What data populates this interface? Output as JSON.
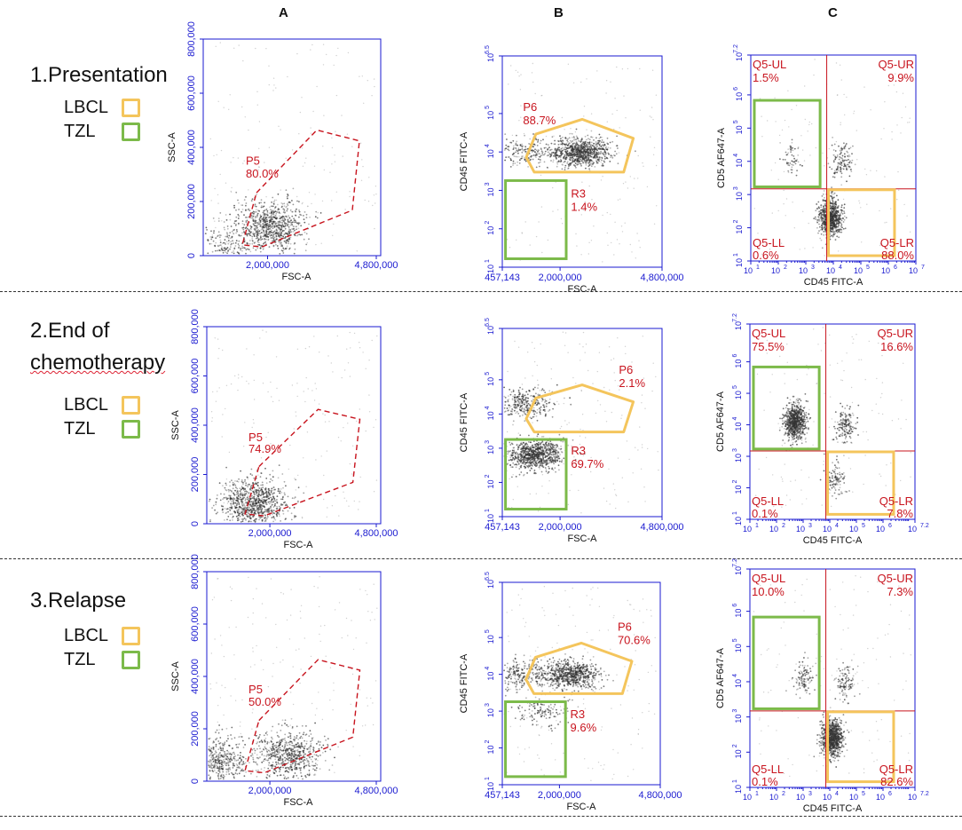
{
  "columns": {
    "a": "A",
    "b": "B",
    "c": "C"
  },
  "legend": {
    "lbcl": "LBCL",
    "tzl": "TZL"
  },
  "colors": {
    "lbcl": "#f4c55c",
    "tzl": "#7cba4a",
    "gate": "#c8141e",
    "axis": "#1a1ad0",
    "dot": "#333333"
  },
  "rows": [
    {
      "title": "1.Presentation"
    },
    {
      "title_line1": "2.End of",
      "title_line2": "chemotherapy"
    },
    {
      "title": "3.Relapse"
    }
  ],
  "chart_data": [
    {
      "id": "r1a",
      "type": "scatter",
      "panel": "A",
      "row": 1,
      "xlabel": "FSC-A",
      "ylabel": "SSC-A",
      "xlim": [
        457143,
        4800000
      ],
      "ylim": [
        0,
        800000
      ],
      "xticks": [
        "2,000,000",
        "4,800,000"
      ],
      "yticks": [
        "0",
        "200,000",
        "400,000",
        "600,000",
        "800,000"
      ],
      "gates": [
        {
          "name": "P5",
          "value": "80.0%"
        }
      ],
      "clusters": [
        {
          "x": 2100000,
          "y": 110000,
          "weight": 0.6
        },
        {
          "x": 1000000,
          "y": 30000,
          "weight": 0.2
        }
      ]
    },
    {
      "id": "r1b",
      "type": "scatter",
      "panel": "B",
      "row": 1,
      "xlabel": "FSC-A",
      "ylabel": "CD45 FITC-A",
      "xlim": [
        457143,
        4800000
      ],
      "ylim_log10": [
        1,
        6.5
      ],
      "xticks": [
        "457,143",
        "2,000,000",
        "4,800,000"
      ],
      "yticks": [
        "1",
        "2",
        "3",
        "4",
        "5",
        "6.5"
      ],
      "gates": [
        {
          "name": "P6",
          "value": "88.7%",
          "kind": "LBCL"
        },
        {
          "name": "R3",
          "value": "1.4%",
          "kind": "TZL"
        }
      ],
      "clusters": [
        {
          "x": 2600000,
          "y": 4.0,
          "weight": 0.7
        },
        {
          "x": 1000000,
          "y": 4.0,
          "weight": 0.15
        }
      ]
    },
    {
      "id": "r1c",
      "type": "scatter",
      "panel": "C",
      "row": 1,
      "xlabel": "CD45 FITC-A",
      "ylabel": "CD5 AF647-A",
      "xlim_log10": [
        1,
        7
      ],
      "ylim_log10": [
        1,
        7.2
      ],
      "xticks": [
        "1",
        "2",
        "3",
        "4",
        "5",
        "6",
        "7"
      ],
      "yticks": [
        "1",
        "2",
        "3",
        "4",
        "5",
        "6",
        "7.2"
      ],
      "quadrants": [
        {
          "name": "Q5-UL",
          "value": "1.5%"
        },
        {
          "name": "Q5-UR",
          "value": "9.9%"
        },
        {
          "name": "Q5-LL",
          "value": "0.6%"
        },
        {
          "name": "Q5-LR",
          "value": "88.0%"
        }
      ],
      "clusters": [
        {
          "x": 3.9,
          "y": 2.3,
          "weight": 0.8
        },
        {
          "x": 4.3,
          "y": 4.0,
          "weight": 0.12
        },
        {
          "x": 2.5,
          "y": 4.1,
          "weight": 0.05
        }
      ]
    },
    {
      "id": "r2a",
      "type": "scatter",
      "panel": "A",
      "row": 2,
      "xlabel": "FSC-A",
      "ylabel": "SSC-A",
      "xlim": [
        457143,
        4800000
      ],
      "ylim": [
        0,
        800000
      ],
      "xticks": [
        "2,000,000",
        "4,800,000"
      ],
      "yticks": [
        "0",
        "200,000",
        "400,000",
        "600,000",
        "800,000"
      ],
      "gates": [
        {
          "name": "P5",
          "value": "74.9%"
        }
      ],
      "clusters": [
        {
          "x": 1600000,
          "y": 80000,
          "weight": 0.7
        }
      ]
    },
    {
      "id": "r2b",
      "type": "scatter",
      "panel": "B",
      "row": 2,
      "xlabel": "FSC-A",
      "ylabel": "CD45 FITC-A",
      "xlim": [
        457143,
        4800000
      ],
      "ylim_log10": [
        1,
        6.5
      ],
      "xticks": [
        "457,143",
        "2,000,000",
        "4,800,000"
      ],
      "yticks": [
        "1",
        "2",
        "3",
        "4",
        "5",
        "6.5"
      ],
      "gates": [
        {
          "name": "P6",
          "value": "2.1%",
          "kind": "LBCL"
        },
        {
          "name": "R3",
          "value": "69.7%",
          "kind": "TZL"
        }
      ],
      "clusters": [
        {
          "x": 1300000,
          "y": 2.8,
          "weight": 0.7
        },
        {
          "x": 1000000,
          "y": 4.3,
          "weight": 0.25
        }
      ]
    },
    {
      "id": "r2c",
      "type": "scatter",
      "panel": "C",
      "row": 2,
      "xlabel": "CD45 FITC-A",
      "ylabel": "CD5 AF647-A",
      "xlim_log10": [
        1,
        7.2
      ],
      "ylim_log10": [
        1,
        7.2
      ],
      "xticks": [
        "1",
        "2",
        "3",
        "4",
        "5",
        "6",
        "7.2"
      ],
      "yticks": [
        "1",
        "2",
        "3",
        "4",
        "5",
        "6",
        "7.2"
      ],
      "quadrants": [
        {
          "name": "Q5-UL",
          "value": "75.5%"
        },
        {
          "name": "Q5-UR",
          "value": "16.6%"
        },
        {
          "name": "Q5-LL",
          "value": "0.1%"
        },
        {
          "name": "Q5-LR",
          "value": "7.8%"
        }
      ],
      "clusters": [
        {
          "x": 2.7,
          "y": 4.1,
          "weight": 0.7
        },
        {
          "x": 4.6,
          "y": 4.0,
          "weight": 0.15
        },
        {
          "x": 4.2,
          "y": 2.3,
          "weight": 0.1
        }
      ]
    },
    {
      "id": "r3a",
      "type": "scatter",
      "panel": "A",
      "row": 3,
      "xlabel": "FSC-A",
      "ylabel": "SSC-A",
      "xlim": [
        457143,
        4800000
      ],
      "ylim": [
        0,
        800000
      ],
      "xticks": [
        "2,000,000",
        "4,800,000"
      ],
      "yticks": [
        "0",
        "200,000",
        "400,000",
        "600,000",
        "800,000"
      ],
      "gates": [
        {
          "name": "P5",
          "value": "50.0%"
        }
      ],
      "clusters": [
        {
          "x": 2500000,
          "y": 100000,
          "weight": 0.5
        },
        {
          "x": 600000,
          "y": 80000,
          "weight": 0.4
        }
      ]
    },
    {
      "id": "r3b",
      "type": "scatter",
      "panel": "B",
      "row": 3,
      "xlabel": "FSC-A",
      "ylabel": "CD45 FITC-A",
      "xlim": [
        457143,
        4800000
      ],
      "ylim_log10": [
        1,
        6.5
      ],
      "xticks": [
        "457,143",
        "2,000,000",
        "4,800,000"
      ],
      "yticks": [
        "1",
        "2",
        "3",
        "4",
        "5",
        "6.5"
      ],
      "gates": [
        {
          "name": "P6",
          "value": "70.6%",
          "kind": "LBCL"
        },
        {
          "name": "R3",
          "value": "9.6%",
          "kind": "TZL"
        }
      ],
      "clusters": [
        {
          "x": 2300000,
          "y": 4.0,
          "weight": 0.6
        },
        {
          "x": 900000,
          "y": 4.0,
          "weight": 0.2
        },
        {
          "x": 1500000,
          "y": 3.0,
          "weight": 0.1
        }
      ]
    },
    {
      "id": "r3c",
      "type": "scatter",
      "panel": "C",
      "row": 3,
      "xlabel": "CD45 FITC-A",
      "ylabel": "CD5 AF647-A",
      "xlim_log10": [
        1,
        7.2
      ],
      "ylim_log10": [
        1,
        7.2
      ],
      "xticks": [
        "1",
        "2",
        "3",
        "4",
        "5",
        "6",
        "7.2"
      ],
      "yticks": [
        "1",
        "2",
        "3",
        "4",
        "5",
        "6",
        "7.2"
      ],
      "quadrants": [
        {
          "name": "Q5-UL",
          "value": "10.0%"
        },
        {
          "name": "Q5-UR",
          "value": "7.3%"
        },
        {
          "name": "Q5-LL",
          "value": "0.1%"
        },
        {
          "name": "Q5-LR",
          "value": "82.6%"
        }
      ],
      "clusters": [
        {
          "x": 4.1,
          "y": 2.4,
          "weight": 0.8
        },
        {
          "x": 3.0,
          "y": 4.1,
          "weight": 0.1
        },
        {
          "x": 4.6,
          "y": 4.0,
          "weight": 0.1
        }
      ]
    }
  ]
}
